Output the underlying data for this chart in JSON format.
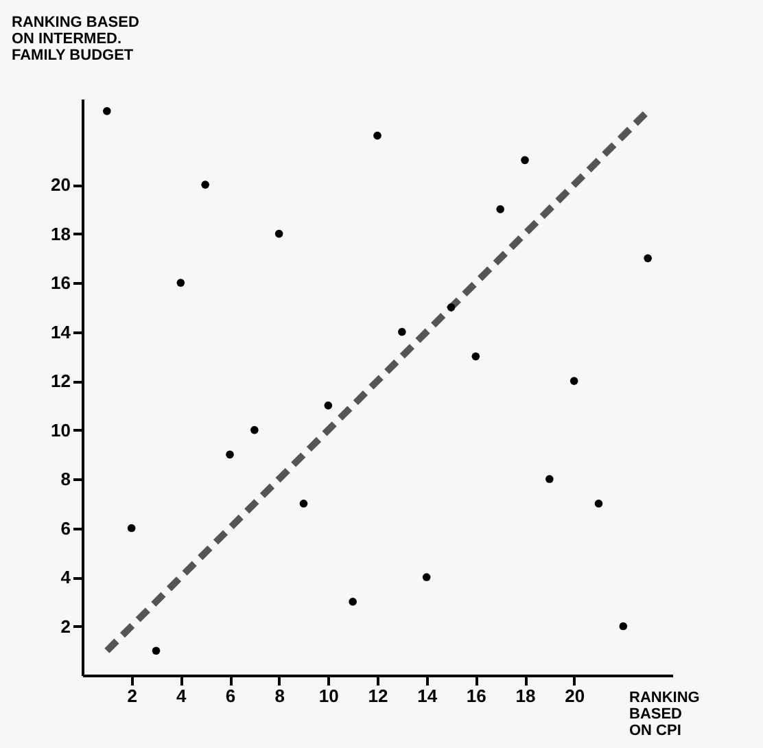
{
  "chart_data": {
    "type": "scatter",
    "xlabel": "RANKING BASED ON CPI",
    "ylabel": "RANKING BASED ON INTERMED. FAMILY BUDGET",
    "marker": "circle",
    "xlim": [
      0,
      24
    ],
    "ylim": [
      0,
      23.5
    ],
    "xticks": [
      2,
      4,
      6,
      8,
      10,
      12,
      14,
      16,
      18,
      20
    ],
    "yticks": [
      2,
      4,
      6,
      8,
      10,
      12,
      14,
      16,
      18,
      20
    ],
    "series": [
      {
        "color": "#000000",
        "x": [
          1,
          2,
          3,
          4,
          5,
          6,
          7,
          8,
          9,
          10,
          11,
          12,
          13,
          14,
          15,
          16,
          17,
          18,
          19,
          20,
          21,
          22,
          23
        ],
        "values": [
          23,
          6,
          1,
          16,
          20,
          9,
          10,
          18,
          7,
          11,
          3,
          22,
          14,
          4,
          15,
          13,
          19,
          21,
          8,
          12,
          7,
          2,
          17
        ]
      },
      {
        "type": "line",
        "color": "#555555",
        "line_style": "dashed",
        "marker": "none",
        "x": [
          1,
          23
        ],
        "values": [
          1,
          23
        ]
      }
    ]
  }
}
